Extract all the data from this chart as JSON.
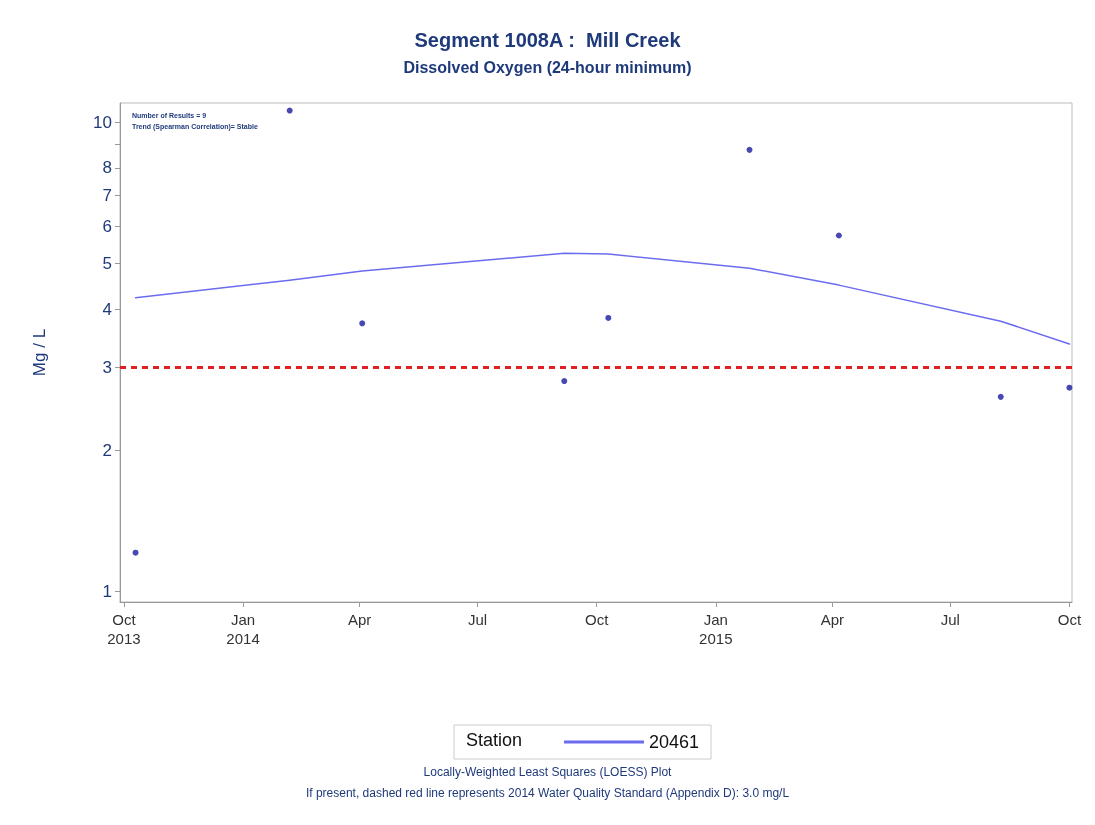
{
  "chart_data": {
    "type": "scatter",
    "title": "Segment 1008A :  Mill Creek",
    "subtitle": "Dissolved Oxygen (24-hour minimum)",
    "ylabel": "Mg / L",
    "legend_title": "Station",
    "log": "y",
    "grid": false,
    "legend": "bottom",
    "xlim": [
      "2013-09-28",
      "2015-10-03"
    ],
    "xticks": [
      {
        "value": "2013-10-01",
        "label": "Oct\n2013"
      },
      {
        "value": "2014-01-01",
        "label": "Jan\n2014"
      },
      {
        "value": "2014-04-01",
        "label": "Apr"
      },
      {
        "value": "2014-07-01",
        "label": "Jul"
      },
      {
        "value": "2014-10-01",
        "label": "Oct"
      },
      {
        "value": "2015-01-01",
        "label": "Jan\n2015"
      },
      {
        "value": "2015-04-01",
        "label": "Apr"
      },
      {
        "value": "2015-07-01",
        "label": "Jul"
      },
      {
        "value": "2015-10-01",
        "label": "Oct"
      }
    ],
    "ylim": [
      0.95,
      11
    ],
    "yticks": [
      1,
      2,
      3,
      4,
      5,
      6,
      7,
      8,
      {
        "value": 9,
        "label": null
      },
      10
    ],
    "series": [
      {
        "type": "scatter",
        "color": "#1a1aa0",
        "marker": "circle",
        "x": [
          "2013-10-10",
          "2014-02-06",
          "2014-04-03",
          "2014-09-06",
          "2014-10-10",
          "2015-01-27",
          "2015-04-06",
          "2015-08-09",
          "2015-10-01"
        ],
        "values": [
          1.21,
          10.6,
          3.73,
          2.81,
          3.83,
          8.74,
          5.74,
          2.6,
          2.72
        ]
      },
      {
        "type": "line",
        "name": "20461",
        "color": "#6b6bf0",
        "marker": "none",
        "line_style": "solid",
        "x": [
          "2013-10-10",
          "2014-02-06",
          "2014-04-03",
          "2014-09-06",
          "2014-10-10",
          "2015-01-27",
          "2015-04-06",
          "2015-08-09",
          "2015-10-01"
        ],
        "values": [
          4.23,
          4.61,
          4.82,
          5.26,
          5.24,
          4.89,
          4.5,
          3.77,
          3.37
        ]
      }
    ],
    "ref_lines": [
      {
        "axis": "y",
        "value": 3,
        "color": "#e02020",
        "line_style": "dashed"
      }
    ],
    "annotations": [
      "Number of Results = 9",
      "Trend (Spearman Correlation)= Stable",
      "Locally-Weighted Least Squares (LOESS) Plot",
      "If present, dashed red line represents 2014 Water Quality Standard (Appendix D): 3.0 mg/L"
    ]
  }
}
